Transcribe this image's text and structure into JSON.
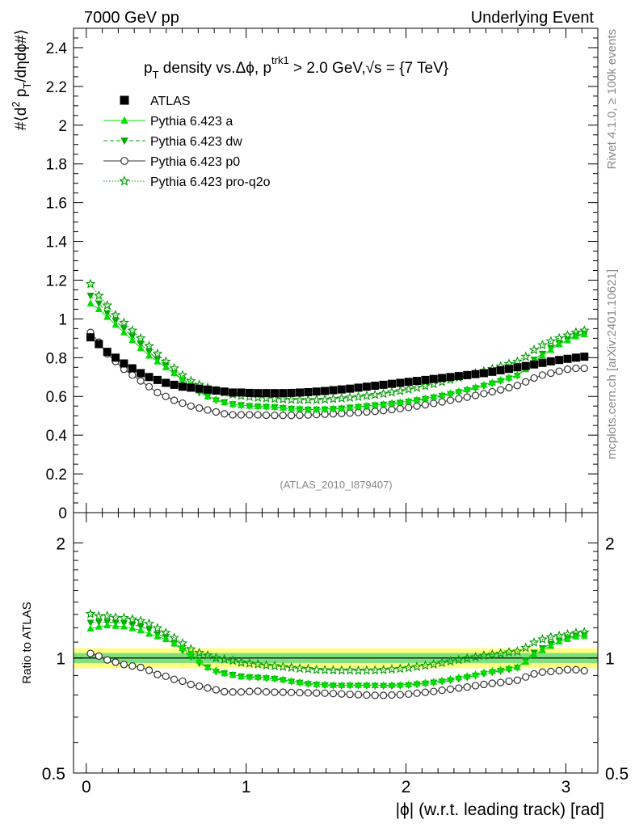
{
  "header": {
    "left": "7000 GeV pp",
    "right": "Underlying Event"
  },
  "side_labels": {
    "rivet": "Rivet 4.1.0, ≥ 100k events",
    "mcplots": "mcplots.cern.ch [arXiv:2401.10621]"
  },
  "chart_data": [
    {
      "type": "scatter",
      "title": "pT density vs. Δφ, pT trk1 > 2.0 GeV, √s = {7 TeV}",
      "title_parts": {
        "main_1": "p",
        "sub_T": "T",
        "main_2": " density vs.Δϕ, p",
        "sup_trk1": "trk1",
        "main_3": " > 2.0 GeV,",
        "sqrt": "√s",
        "main_4": " = {7 TeV}"
      },
      "ylabel": "#⟨d² pT/dηdϕ#⟩",
      "ylabel_parts": {
        "a": "#⟨d",
        "b": "2",
        "c": " p",
        "d": "T",
        "e": "/dηdϕ#⟩"
      },
      "watermark": "(ATLAS_2010_I879407)",
      "xlim": [
        -0.08,
        3.2
      ],
      "ylim": [
        0,
        2.5
      ],
      "yticks": [
        "0",
        "0.2",
        "0.4",
        "0.6",
        "0.8",
        "1",
        "1.2",
        "1.4",
        "1.6",
        "1.8",
        "2",
        "2.2",
        "2.4"
      ],
      "x": [
        0.0262,
        0.0785,
        0.1309,
        0.1833,
        0.2356,
        0.288,
        0.3403,
        0.3927,
        0.4451,
        0.4974,
        0.5498,
        0.6021,
        0.6545,
        0.7069,
        0.7592,
        0.8116,
        0.8639,
        0.9163,
        0.9687,
        1.021,
        1.0734,
        1.1257,
        1.1781,
        1.2305,
        1.2828,
        1.3352,
        1.3875,
        1.4399,
        1.4923,
        1.5446,
        1.597,
        1.6493,
        1.7017,
        1.7541,
        1.8064,
        1.8588,
        1.9111,
        1.9635,
        2.0159,
        2.0682,
        2.1206,
        2.1729,
        2.2253,
        2.2777,
        2.33,
        2.3824,
        2.4347,
        2.4871,
        2.5395,
        2.5918,
        2.6442,
        2.6965,
        2.7489,
        2.8013,
        2.8536,
        2.906,
        2.9583,
        3.0107,
        3.0631,
        3.1154
      ],
      "legend": [
        "ATLAS",
        "Pythia 6.423 a",
        "Pythia 6.423 dw",
        "Pythia 6.423 p0",
        "Pythia 6.423 pro-q2o"
      ],
      "series": [
        {
          "name": "ATLAS",
          "color": "#000000",
          "marker": "square",
          "values": [
            0.905,
            0.87,
            0.83,
            0.8,
            0.77,
            0.745,
            0.72,
            0.7,
            0.685,
            0.67,
            0.66,
            0.65,
            0.645,
            0.64,
            0.635,
            0.63,
            0.625,
            0.62,
            0.62,
            0.618,
            0.617,
            0.617,
            0.617,
            0.617,
            0.618,
            0.62,
            0.622,
            0.625,
            0.628,
            0.632,
            0.636,
            0.64,
            0.645,
            0.65,
            0.655,
            0.66,
            0.665,
            0.67,
            0.675,
            0.68,
            0.685,
            0.69,
            0.695,
            0.7,
            0.705,
            0.71,
            0.715,
            0.72,
            0.727,
            0.735,
            0.742,
            0.75,
            0.757,
            0.765,
            0.773,
            0.781,
            0.788,
            0.794,
            0.8,
            0.805
          ]
        },
        {
          "name": "Pythia 6.423 a",
          "color": "#00dd00",
          "marker": "triangle-up",
          "line": "solid",
          "values": [
            1.08,
            1.05,
            1.01,
            0.97,
            0.93,
            0.89,
            0.85,
            0.81,
            0.78,
            0.75,
            0.72,
            0.69,
            0.66,
            0.63,
            0.6,
            0.585,
            0.57,
            0.56,
            0.555,
            0.552,
            0.55,
            0.548,
            0.546,
            0.542,
            0.538,
            0.536,
            0.534,
            0.534,
            0.535,
            0.537,
            0.54,
            0.544,
            0.548,
            0.552,
            0.556,
            0.56,
            0.565,
            0.57,
            0.576,
            0.583,
            0.59,
            0.598,
            0.607,
            0.617,
            0.627,
            0.637,
            0.648,
            0.66,
            0.672,
            0.685,
            0.697,
            0.71,
            0.74,
            0.78,
            0.81,
            0.84,
            0.87,
            0.89,
            0.91,
            0.92
          ]
        },
        {
          "name": "Pythia 6.423 dw",
          "color": "#00aa00",
          "marker": "triangle-down",
          "line": "dashed",
          "values": [
            1.12,
            1.08,
            1.03,
            0.99,
            0.95,
            0.91,
            0.87,
            0.83,
            0.79,
            0.76,
            0.72,
            0.68,
            0.65,
            0.62,
            0.6,
            0.58,
            0.57,
            0.56,
            0.555,
            0.55,
            0.548,
            0.546,
            0.544,
            0.54,
            0.536,
            0.534,
            0.532,
            0.532,
            0.533,
            0.535,
            0.538,
            0.542,
            0.546,
            0.55,
            0.554,
            0.558,
            0.562,
            0.567,
            0.573,
            0.58,
            0.587,
            0.595,
            0.603,
            0.612,
            0.622,
            0.632,
            0.643,
            0.655,
            0.667,
            0.68,
            0.693,
            0.707,
            0.745,
            0.79,
            0.82,
            0.85,
            0.875,
            0.895,
            0.915,
            0.925
          ]
        },
        {
          "name": "Pythia 6.423 p0",
          "color": "#333333",
          "marker": "circle-open",
          "line": "solid",
          "values": [
            0.93,
            0.88,
            0.82,
            0.78,
            0.74,
            0.71,
            0.68,
            0.65,
            0.62,
            0.6,
            0.58,
            0.565,
            0.55,
            0.54,
            0.53,
            0.52,
            0.51,
            0.505,
            0.505,
            0.505,
            0.505,
            0.503,
            0.502,
            0.502,
            0.502,
            0.503,
            0.504,
            0.506,
            0.508,
            0.51,
            0.512,
            0.514,
            0.517,
            0.52,
            0.523,
            0.527,
            0.532,
            0.537,
            0.543,
            0.55,
            0.557,
            0.564,
            0.572,
            0.58,
            0.588,
            0.596,
            0.605,
            0.614,
            0.624,
            0.634,
            0.645,
            0.656,
            0.675,
            0.695,
            0.71,
            0.72,
            0.73,
            0.74,
            0.745,
            0.745
          ]
        },
        {
          "name": "Pythia 6.423 pro-q2o",
          "color": "#009900",
          "marker": "star-open",
          "line": "dotted",
          "values": [
            1.18,
            1.12,
            1.07,
            1.02,
            0.98,
            0.94,
            0.9,
            0.86,
            0.82,
            0.78,
            0.745,
            0.71,
            0.68,
            0.66,
            0.645,
            0.63,
            0.62,
            0.61,
            0.603,
            0.598,
            0.594,
            0.59,
            0.588,
            0.585,
            0.583,
            0.582,
            0.582,
            0.582,
            0.584,
            0.587,
            0.59,
            0.594,
            0.598,
            0.603,
            0.608,
            0.614,
            0.621,
            0.628,
            0.636,
            0.645,
            0.654,
            0.664,
            0.675,
            0.686,
            0.697,
            0.708,
            0.719,
            0.73,
            0.742,
            0.755,
            0.768,
            0.78,
            0.805,
            0.84,
            0.865,
            0.885,
            0.9,
            0.915,
            0.93,
            0.94
          ]
        }
      ]
    },
    {
      "type": "scatter",
      "title": "",
      "xlabel": "|ϕ| (w.r.t. leading track) [rad]",
      "ylabel": "Ratio to ATLAS",
      "xlim": [
        -0.08,
        3.2
      ],
      "ylim": [
        0.5,
        2.4
      ],
      "yscale": "log",
      "xticks": [
        "0",
        "1",
        "2",
        "3"
      ],
      "yticks": [
        "0.5",
        "1",
        "2"
      ],
      "band": {
        "inner": [
          0.97,
          1.03
        ],
        "outer": [
          0.94,
          1.06
        ],
        "inner_color": "#7fe07f",
        "outer_color": "#ffff80"
      }
    }
  ]
}
